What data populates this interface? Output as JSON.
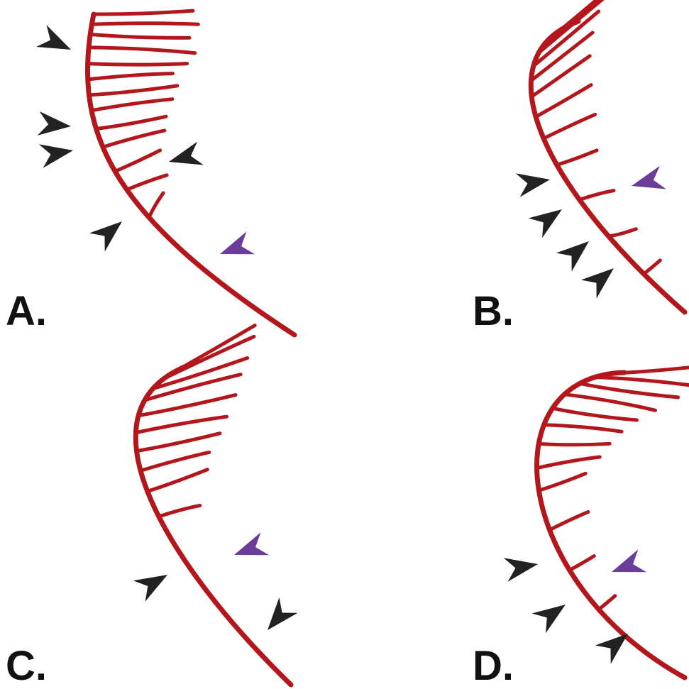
{
  "panels": [
    {
      "label": "A."
    },
    {
      "label": "B."
    },
    {
      "label": "C."
    },
    {
      "label": "D."
    }
  ]
}
